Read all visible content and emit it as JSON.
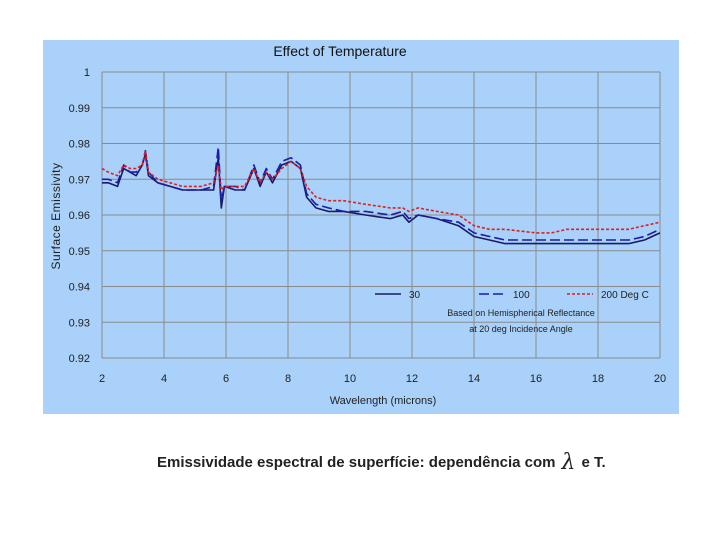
{
  "chart_data": {
    "type": "line",
    "title": "Effect of Temperature",
    "xlabel": "Wavelength (microns)",
    "ylabel": "Surface Emissivity",
    "xlim": [
      2,
      20
    ],
    "ylim": [
      0.92,
      1
    ],
    "x_ticks": [
      "2",
      "4",
      "6",
      "8",
      "10",
      "12",
      "14",
      "16",
      "18",
      "20"
    ],
    "y_ticks": [
      "0.92",
      "0.93",
      "0.94",
      "0.95",
      "0.96",
      "0.97",
      "0.98",
      "0.99",
      "1"
    ],
    "grid": true,
    "legend_position": "bottom-right",
    "annotation": [
      "Based on Hemispherical Reflectance",
      "at 20 deg Incidence Angle"
    ],
    "colors": {
      "background": "#a9d1fa",
      "plot_area": "#a9d1fa",
      "grid": "#8a8a8a"
    },
    "series": [
      {
        "name": "30",
        "color": "#1a1a66",
        "dash": "solid",
        "points": [
          [
            2.0,
            0.969
          ],
          [
            2.2,
            0.969
          ],
          [
            2.5,
            0.968
          ],
          [
            2.7,
            0.973
          ],
          [
            2.9,
            0.972
          ],
          [
            3.1,
            0.971
          ],
          [
            3.3,
            0.974
          ],
          [
            3.4,
            0.977
          ],
          [
            3.5,
            0.971
          ],
          [
            3.8,
            0.969
          ],
          [
            4.2,
            0.968
          ],
          [
            4.6,
            0.967
          ],
          [
            5.2,
            0.967
          ],
          [
            5.6,
            0.967
          ],
          [
            5.75,
            0.976
          ],
          [
            5.85,
            0.962
          ],
          [
            5.95,
            0.968
          ],
          [
            6.3,
            0.967
          ],
          [
            6.6,
            0.967
          ],
          [
            6.9,
            0.973
          ],
          [
            7.1,
            0.968
          ],
          [
            7.3,
            0.972
          ],
          [
            7.5,
            0.969
          ],
          [
            7.8,
            0.974
          ],
          [
            8.1,
            0.975
          ],
          [
            8.4,
            0.973
          ],
          [
            8.6,
            0.965
          ],
          [
            8.9,
            0.962
          ],
          [
            9.3,
            0.961
          ],
          [
            9.8,
            0.961
          ],
          [
            10.5,
            0.96
          ],
          [
            11.3,
            0.959
          ],
          [
            11.7,
            0.96
          ],
          [
            11.9,
            0.958
          ],
          [
            12.2,
            0.96
          ],
          [
            12.8,
            0.959
          ],
          [
            13.5,
            0.957
          ],
          [
            14.0,
            0.954
          ],
          [
            14.5,
            0.953
          ],
          [
            15.0,
            0.952
          ],
          [
            16.0,
            0.952
          ],
          [
            17.0,
            0.952
          ],
          [
            18.0,
            0.952
          ],
          [
            19.0,
            0.952
          ],
          [
            19.5,
            0.953
          ],
          [
            20.0,
            0.955
          ]
        ]
      },
      {
        "name": "100",
        "color": "#1c1ca8",
        "dash": "long-dash",
        "points": [
          [
            2.0,
            0.97
          ],
          [
            2.2,
            0.97
          ],
          [
            2.5,
            0.969
          ],
          [
            2.7,
            0.974
          ],
          [
            2.9,
            0.972
          ],
          [
            3.1,
            0.972
          ],
          [
            3.3,
            0.974
          ],
          [
            3.4,
            0.978
          ],
          [
            3.5,
            0.972
          ],
          [
            3.8,
            0.969
          ],
          [
            4.2,
            0.968
          ],
          [
            4.6,
            0.967
          ],
          [
            5.2,
            0.967
          ],
          [
            5.6,
            0.968
          ],
          [
            5.75,
            0.979
          ],
          [
            5.85,
            0.964
          ],
          [
            5.95,
            0.968
          ],
          [
            6.3,
            0.968
          ],
          [
            6.6,
            0.967
          ],
          [
            6.9,
            0.974
          ],
          [
            7.1,
            0.969
          ],
          [
            7.3,
            0.973
          ],
          [
            7.5,
            0.97
          ],
          [
            7.8,
            0.975
          ],
          [
            8.1,
            0.976
          ],
          [
            8.4,
            0.974
          ],
          [
            8.6,
            0.966
          ],
          [
            8.9,
            0.963
          ],
          [
            9.3,
            0.962
          ],
          [
            9.8,
            0.961
          ],
          [
            10.5,
            0.961
          ],
          [
            11.3,
            0.96
          ],
          [
            11.7,
            0.961
          ],
          [
            11.9,
            0.959
          ],
          [
            12.2,
            0.96
          ],
          [
            12.8,
            0.959
          ],
          [
            13.5,
            0.958
          ],
          [
            14.0,
            0.955
          ],
          [
            14.5,
            0.954
          ],
          [
            15.0,
            0.953
          ],
          [
            16.0,
            0.953
          ],
          [
            17.0,
            0.953
          ],
          [
            18.0,
            0.953
          ],
          [
            19.0,
            0.953
          ],
          [
            19.5,
            0.954
          ],
          [
            20.0,
            0.956
          ]
        ]
      },
      {
        "name": "200 Deg C",
        "color": "#e02020",
        "dash": "short-dash",
        "points": [
          [
            2.0,
            0.973
          ],
          [
            2.2,
            0.972
          ],
          [
            2.5,
            0.971
          ],
          [
            2.7,
            0.974
          ],
          [
            2.9,
            0.973
          ],
          [
            3.1,
            0.973
          ],
          [
            3.3,
            0.974
          ],
          [
            3.4,
            0.978
          ],
          [
            3.5,
            0.972
          ],
          [
            3.8,
            0.97
          ],
          [
            4.2,
            0.969
          ],
          [
            4.6,
            0.968
          ],
          [
            5.2,
            0.968
          ],
          [
            5.6,
            0.969
          ],
          [
            5.75,
            0.974
          ],
          [
            5.85,
            0.967
          ],
          [
            5.95,
            0.968
          ],
          [
            6.3,
            0.968
          ],
          [
            6.6,
            0.968
          ],
          [
            6.9,
            0.973
          ],
          [
            7.1,
            0.969
          ],
          [
            7.3,
            0.972
          ],
          [
            7.5,
            0.97
          ],
          [
            7.8,
            0.973
          ],
          [
            8.1,
            0.975
          ],
          [
            8.4,
            0.973
          ],
          [
            8.6,
            0.968
          ],
          [
            8.9,
            0.965
          ],
          [
            9.3,
            0.964
          ],
          [
            9.8,
            0.964
          ],
          [
            10.5,
            0.963
          ],
          [
            11.3,
            0.962
          ],
          [
            11.7,
            0.962
          ],
          [
            11.9,
            0.961
          ],
          [
            12.2,
            0.962
          ],
          [
            12.8,
            0.961
          ],
          [
            13.5,
            0.96
          ],
          [
            14.0,
            0.957
          ],
          [
            14.5,
            0.956
          ],
          [
            15.0,
            0.956
          ],
          [
            16.0,
            0.955
          ],
          [
            16.5,
            0.955
          ],
          [
            17.0,
            0.956
          ],
          [
            18.0,
            0.956
          ],
          [
            19.0,
            0.956
          ],
          [
            19.5,
            0.957
          ],
          [
            20.0,
            0.958
          ]
        ]
      }
    ]
  },
  "caption": {
    "before": "Emissividade espectral de superfície: dependência com",
    "symbol": "λ",
    "after": "e T."
  }
}
